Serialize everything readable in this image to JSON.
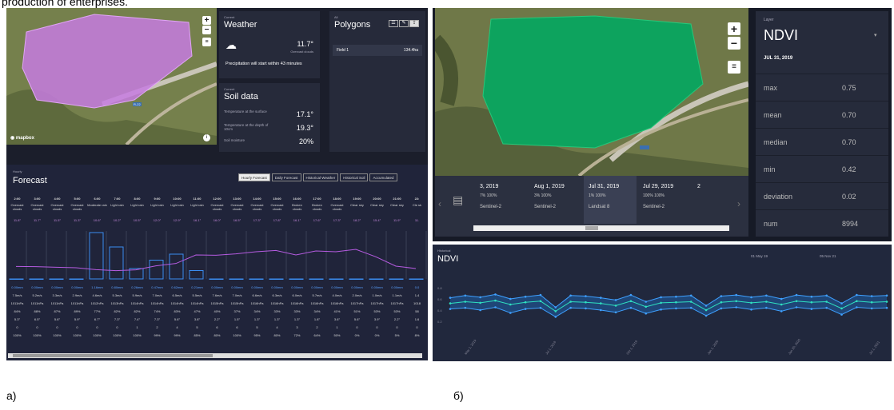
{
  "caption_top": "production of enterprises.",
  "labels": {
    "a": "а)",
    "b": "б)"
  },
  "panel_a": {
    "map": {
      "zoom_in": "+",
      "zoom_out": "−",
      "attribution": "mapbox",
      "road_badge": "R-22"
    },
    "weather": {
      "kicker": "Current",
      "title": "Weather",
      "temp": "11.7°",
      "condition": "Overcast clouds",
      "note": "Precipitation will start within 43 minutes"
    },
    "soil": {
      "kicker": "Current",
      "title": "Soil data",
      "rows": [
        {
          "label": "Temperature at the surface",
          "value": "17.1°"
        },
        {
          "label": "Temperature at the depth of 10cm",
          "value": "19.3°"
        },
        {
          "label": "Soil moisture",
          "value": "20%"
        }
      ]
    },
    "polygons": {
      "kicker": "All",
      "title": "Polygons",
      "field_name": "Field 1",
      "field_area": "134.4ha"
    },
    "forecast": {
      "kicker": "Hourly",
      "title": "Forecast",
      "tabs": [
        "Hourly Forecast",
        "Daily Forecast",
        "Historical Weather",
        "Historical Soil",
        "Accumulated"
      ],
      "times": [
        "2:00",
        "3:00",
        "4:00",
        "5:00",
        "6:00",
        "7:00",
        "8:00",
        "9:00",
        "10:00",
        "11:00",
        "12:00",
        "13:00",
        "14:00",
        "15:00",
        "16:00",
        "17:00",
        "18:00",
        "19:00",
        "20:00",
        "21:00",
        "22:"
      ],
      "conditions": [
        "Overcast clouds",
        "Overcast clouds",
        "Overcast clouds",
        "Overcast clouds",
        "Moderate rain",
        "Light rain",
        "Light rain",
        "Light rain",
        "Light rain",
        "Light rain",
        "Overcast clouds",
        "Overcast clouds",
        "Overcast clouds",
        "Overcast clouds",
        "Broken clouds",
        "Broken clouds",
        "Overcast clouds",
        "Clear sky",
        "Clear sky",
        "Clear sky",
        "Cle sk"
      ],
      "temps": [
        "11.8°",
        "11.7°",
        "11.5°",
        "11.3°",
        "10.6°",
        "10.2°",
        "10.5°",
        "12.0°",
        "12.9°",
        "16.1°",
        "16.0°",
        "16.5°",
        "17.3°",
        "17.8°",
        "16.1°",
        "17.6°",
        "17.3°",
        "18.2°",
        "15.4°",
        "11.9°",
        "11."
      ],
      "precip": [
        "0.00mm",
        "0.00mm",
        "0.00mm",
        "0.00mm",
        "1.16mm",
        "0.80mm",
        "0.26mm",
        "0.47mm",
        "0.62mm",
        "0.21mm",
        "0.00mm",
        "0.00mm",
        "0.00mm",
        "0.00mm",
        "0.00mm",
        "0.00mm",
        "0.00mm",
        "0.00mm",
        "0.00mm",
        "0.00mm",
        "0.0"
      ],
      "wind": [
        "7.5m/s",
        "5.2m/s",
        "3.3m/s",
        "2.9m/s",
        "4.6m/s",
        "5.3m/s",
        "5.9m/s",
        "7.0m/s",
        "6.5m/s",
        "5.5m/s",
        "7.6m/s",
        "7.0m/s",
        "6.6m/s",
        "6.3m/s",
        "6.0m/s",
        "5.7m/s",
        "4.0m/s",
        "2.0m/s",
        "1.0m/s",
        "1.1m/s",
        "1.4"
      ],
      "pressure": [
        "1011hPa",
        "1011hPa",
        "1011hPa",
        "1011hPa",
        "1012hPa",
        "1013hPa",
        "1014hPa",
        "1014hPa",
        "1014hPa",
        "1014hPa",
        "1015hPa",
        "1015hPa",
        "1016hPa",
        "1016hPa",
        "1016hPa",
        "1016hPa",
        "1016hPa",
        "1017hPa",
        "1017hPa",
        "1017hPa",
        "1018"
      ],
      "humidity": [
        "84%",
        "88%",
        "87%",
        "89%",
        "77%",
        "82%",
        "82%",
        "74%",
        "83%",
        "47%",
        "40%",
        "37%",
        "34%",
        "33%",
        "33%",
        "34%",
        "41%",
        "51%",
        "53%",
        "53%",
        "58"
      ],
      "dew": [
        "5.3°",
        "6.5°",
        "5.6°",
        "5.9°",
        "6.7°",
        "7.3°",
        "7.4°",
        "7.3°",
        "5.6°",
        "3.8°",
        "2.2°",
        "1.5°",
        "1.3°",
        "1.3°",
        "1.3°",
        "1.8°",
        "3.6°",
        "5.6°",
        "3.9°",
        "2.2°",
        "1.6"
      ],
      "uvi": [
        "0",
        "0",
        "0",
        "0",
        "0",
        "0",
        "1",
        "2",
        "4",
        "5",
        "6",
        "6",
        "5",
        "4",
        "3",
        "2",
        "1",
        "0",
        "0",
        "0",
        "0"
      ],
      "clouds": [
        "100%",
        "100%",
        "100%",
        "100%",
        "100%",
        "100%",
        "100%",
        "99%",
        "99%",
        "85%",
        "80%",
        "100%",
        "95%",
        "80%",
        "72%",
        "64%",
        "50%",
        "0%",
        "0%",
        "5%",
        "8%"
      ]
    }
  },
  "panel_b": {
    "map": {
      "zoom_in": "+",
      "zoom_out": "−"
    },
    "timeline": [
      {
        "date": "3, 2019",
        "icons": "7%  100%",
        "source": "Sentinel-2"
      },
      {
        "date": "Aug 1, 2019",
        "icons": "3%  100%",
        "source": "Sentinel-2"
      },
      {
        "date": "Jul 31, 2019",
        "icons": "1%  100%",
        "source": "Landsat 8"
      },
      {
        "date": "Jul 29, 2019",
        "icons": "100%  100%",
        "source": "Sentinel-2"
      },
      {
        "date": "2",
        "icons": "",
        "source": ""
      }
    ],
    "layer": {
      "kicker": "Layer",
      "name": "NDVI",
      "date": "JUL 31, 2019",
      "stats": [
        {
          "label": "max",
          "value": "0.75"
        },
        {
          "label": "mean",
          "value": "0.70"
        },
        {
          "label": "median",
          "value": "0.70"
        },
        {
          "label": "min",
          "value": "0.42"
        },
        {
          "label": "deviation",
          "value": "0.02"
        },
        {
          "label": "num",
          "value": "8994"
        }
      ]
    },
    "ndvi_chart": {
      "kicker": "Historical",
      "title": "NDVI",
      "range_start": "01 May 19",
      "range_end": "05 Nov 21",
      "y_ticks": [
        "0.8",
        "0.6",
        "0.4",
        "0.2"
      ],
      "x_ticks": [
        "May 1, 2019",
        "Jul 1, 2019",
        "Oct 1, 2019",
        "Jan 1, 2020",
        "Jan 20, 2020",
        "Jul 1, 2021"
      ]
    }
  },
  "chart_data": {
    "type": "area",
    "title": "NDVI",
    "ylim": [
      0.0,
      1.0
    ],
    "series": [
      {
        "name": "max",
        "values": [
          0.62,
          0.66,
          0.63,
          0.68,
          0.6,
          0.64,
          0.67,
          0.45,
          0.66,
          0.65,
          0.62,
          0.58,
          0.67,
          0.55,
          0.63,
          0.64,
          0.66,
          0.48,
          0.65,
          0.67,
          0.63,
          0.66,
          0.6,
          0.67,
          0.64,
          0.66,
          0.52,
          0.67,
          0.65,
          0.66
        ]
      },
      {
        "name": "mean",
        "values": [
          0.52,
          0.55,
          0.53,
          0.57,
          0.5,
          0.54,
          0.56,
          0.38,
          0.55,
          0.54,
          0.52,
          0.48,
          0.56,
          0.46,
          0.53,
          0.54,
          0.55,
          0.4,
          0.54,
          0.56,
          0.53,
          0.55,
          0.5,
          0.56,
          0.54,
          0.55,
          0.43,
          0.56,
          0.54,
          0.55
        ]
      },
      {
        "name": "min",
        "values": [
          0.42,
          0.44,
          0.4,
          0.45,
          0.35,
          0.42,
          0.44,
          0.28,
          0.44,
          0.43,
          0.4,
          0.36,
          0.44,
          0.34,
          0.41,
          0.43,
          0.44,
          0.3,
          0.43,
          0.45,
          0.41,
          0.44,
          0.38,
          0.45,
          0.42,
          0.44,
          0.32,
          0.45,
          0.43,
          0.44
        ]
      }
    ]
  }
}
